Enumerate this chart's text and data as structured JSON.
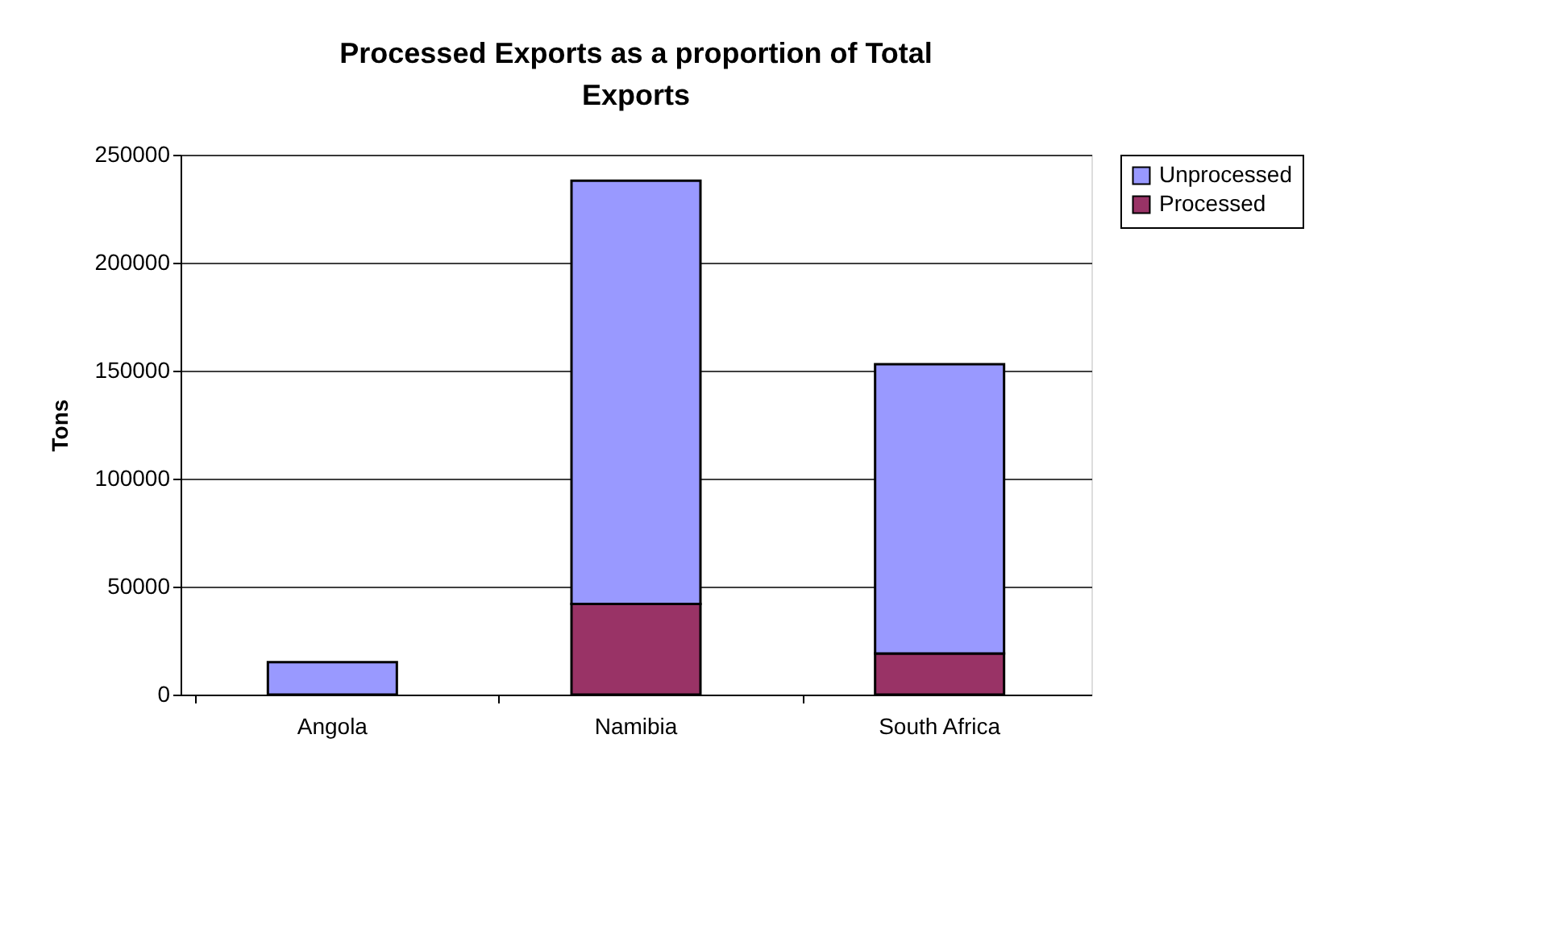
{
  "chart_data": {
    "type": "bar",
    "title": "Processed Exports as a proportion of Total Exports",
    "ylabel": "Tons",
    "categories": [
      "Angola",
      "Namibia",
      "South Africa"
    ],
    "stacked": true,
    "series": [
      {
        "name": "Processed",
        "color": "#993366",
        "values": [
          0,
          42000,
          19000
        ]
      },
      {
        "name": "Unprocessed",
        "color": "#9999ff",
        "values": [
          15000,
          196000,
          134000
        ]
      }
    ],
    "ylim": [
      0,
      250000
    ],
    "yticks": [
      0,
      50000,
      100000,
      150000,
      200000,
      250000
    ],
    "grid": "y",
    "legend": "right"
  }
}
